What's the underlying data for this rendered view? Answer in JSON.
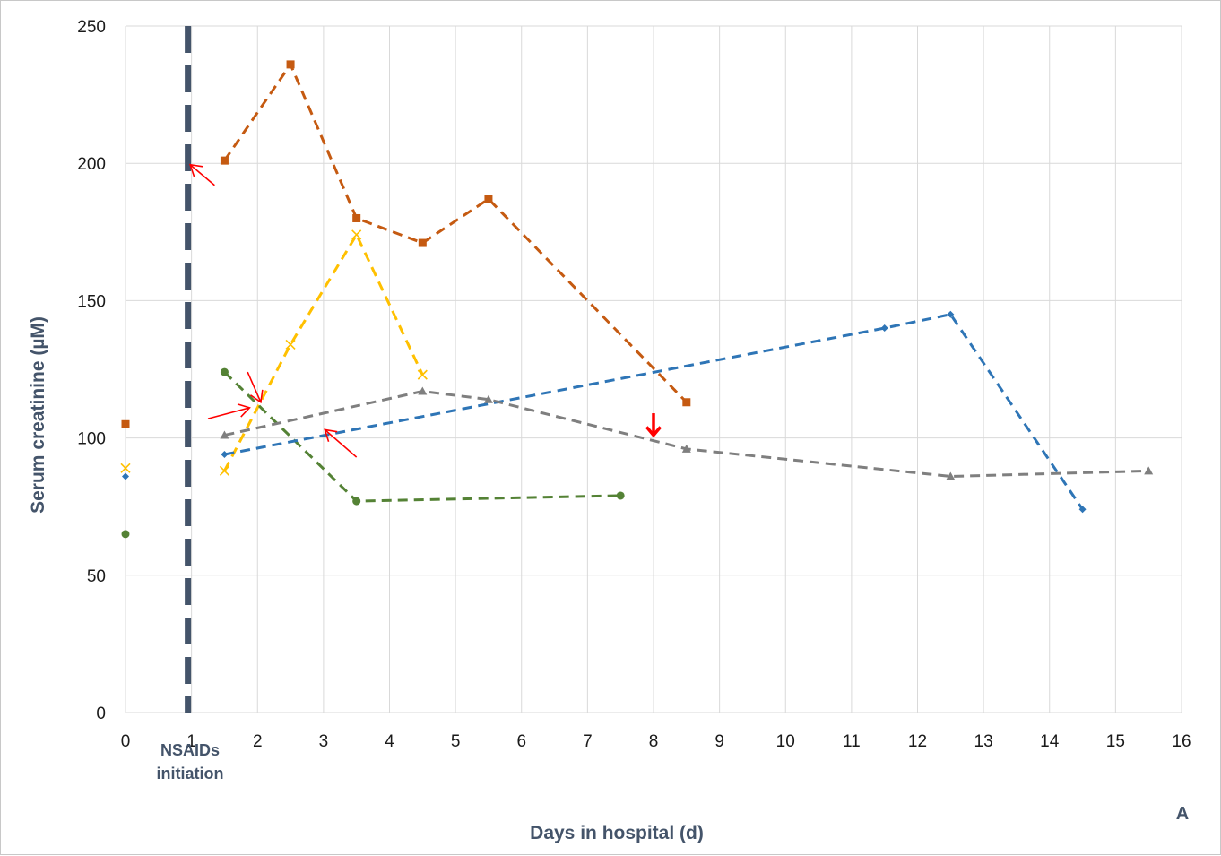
{
  "chart_data": {
    "type": "line",
    "title": "",
    "xlabel": "Days in hospital (d)",
    "ylabel": "Serum creatinine (µM)",
    "xlim": [
      0,
      16
    ],
    "ylim": [
      0,
      250
    ],
    "x_ticks": [
      "0",
      "1",
      "2",
      "3",
      "4",
      "5",
      "6",
      "7",
      "8",
      "9",
      "10",
      "11",
      "12",
      "13",
      "14",
      "15",
      "16"
    ],
    "y_ticks": [
      "0",
      "50",
      "100",
      "150",
      "200",
      "250"
    ],
    "grid": true,
    "legend": "none",
    "panel_label": "A",
    "event_line": {
      "x": 1,
      "label_line1": "NSAIDs",
      "label_line2": "initiation",
      "color": "#44546a"
    },
    "series": [
      {
        "color": "#c55a11",
        "marker": "square",
        "baseline": {
          "x": 0,
          "y": 105
        },
        "x": [
          1.5,
          2.5,
          3.5,
          4.5,
          5.5,
          8.5
        ],
        "y": [
          201,
          236,
          180,
          171,
          187,
          113
        ]
      },
      {
        "color": "#ffc000",
        "marker": "x",
        "baseline": {
          "x": 0,
          "y": 89
        },
        "x": [
          1.5,
          2.5,
          3.5,
          4.5
        ],
        "y": [
          88,
          134,
          174,
          123
        ]
      },
      {
        "color": "#548235",
        "marker": "circle",
        "baseline": {
          "x": 0,
          "y": 65
        },
        "x": [
          1.5,
          3.5,
          7.5
        ],
        "y": [
          124,
          77,
          79
        ]
      },
      {
        "color": "#2e75b6",
        "marker": "diamond",
        "baseline": {
          "x": 0,
          "y": 86
        },
        "x": [
          1.5,
          11.5,
          12.5,
          14.5
        ],
        "y": [
          94,
          140,
          145,
          74
        ]
      },
      {
        "color": "#7f7f7f",
        "marker": "triangle",
        "x": [
          1.5,
          4.5,
          5.5,
          8.5,
          12.5,
          15.5
        ],
        "y": [
          101,
          117,
          114,
          96,
          86,
          88
        ]
      }
    ],
    "arrows": [
      {
        "color": "#ff0000",
        "from": [
          1.35,
          192
        ],
        "to": [
          0.98,
          199.5
        ]
      },
      {
        "color": "#ff0000",
        "from": [
          1.25,
          107
        ],
        "to": [
          1.88,
          111
        ]
      },
      {
        "color": "#ff0000",
        "from": [
          1.85,
          124
        ],
        "to": [
          2.05,
          113
        ]
      },
      {
        "color": "#ff0000",
        "from": [
          3.5,
          93
        ],
        "to": [
          3.02,
          103
        ]
      },
      {
        "color": "#ff0000",
        "from": [
          8.0,
          109
        ],
        "to": [
          8.0,
          101
        ],
        "bold": true
      }
    ]
  }
}
